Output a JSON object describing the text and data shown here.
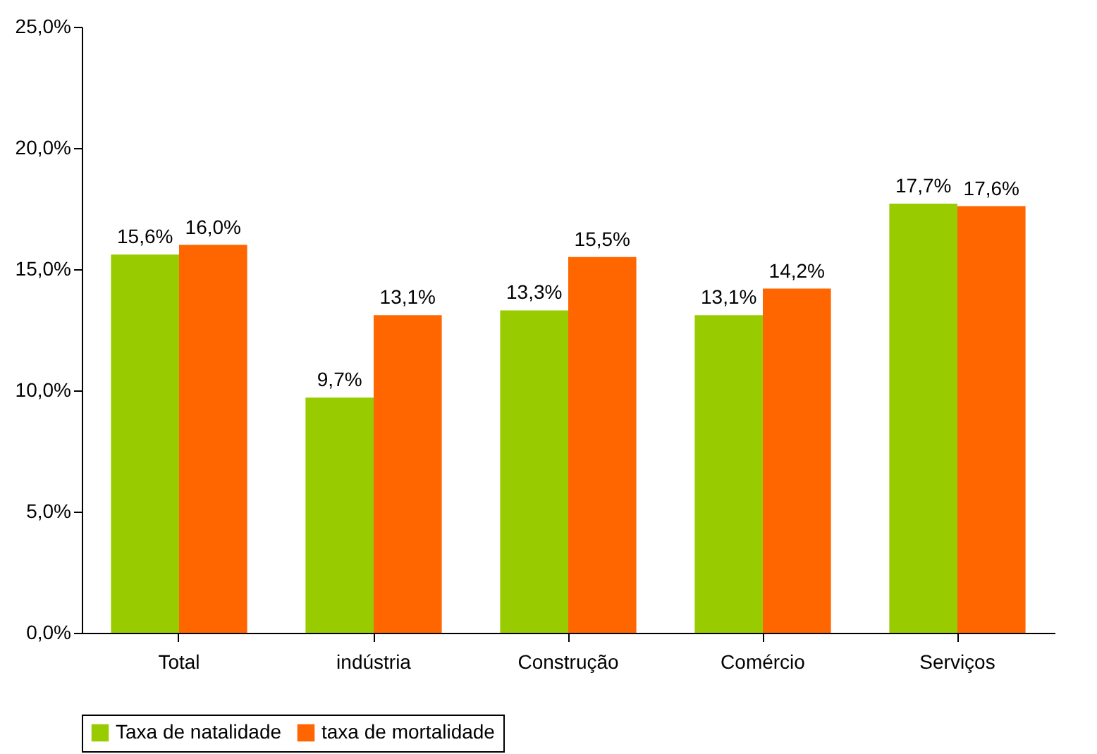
{
  "chart_data": {
    "type": "bar",
    "categories": [
      "Total",
      "indústria",
      "Construção",
      "Comércio",
      "Serviços"
    ],
    "series": [
      {
        "name": "Taxa de natalidade",
        "color": "#99cc00",
        "values": [
          15.6,
          9.7,
          13.3,
          13.1,
          17.7
        ],
        "value_labels": [
          "15,6%",
          "9,7%",
          "13,3%",
          "13,1%",
          "17,7%"
        ]
      },
      {
        "name": "taxa de mortalidade",
        "color": "#ff6600",
        "values": [
          16.0,
          13.1,
          15.5,
          14.2,
          17.6
        ],
        "value_labels": [
          "16,0%",
          "13,1%",
          "15,5%",
          "14,2%",
          "17,6%"
        ]
      }
    ],
    "ylim": [
      0,
      25
    ],
    "yticks": [
      {
        "value": 0,
        "label": "0,0%"
      },
      {
        "value": 5,
        "label": "5,0%"
      },
      {
        "value": 10,
        "label": "10,0%"
      },
      {
        "value": 15,
        "label": "15,0%"
      },
      {
        "value": 20,
        "label": "20,0%"
      },
      {
        "value": 25,
        "label": "25,0%"
      }
    ],
    "grid": false,
    "legend": "bottom"
  }
}
